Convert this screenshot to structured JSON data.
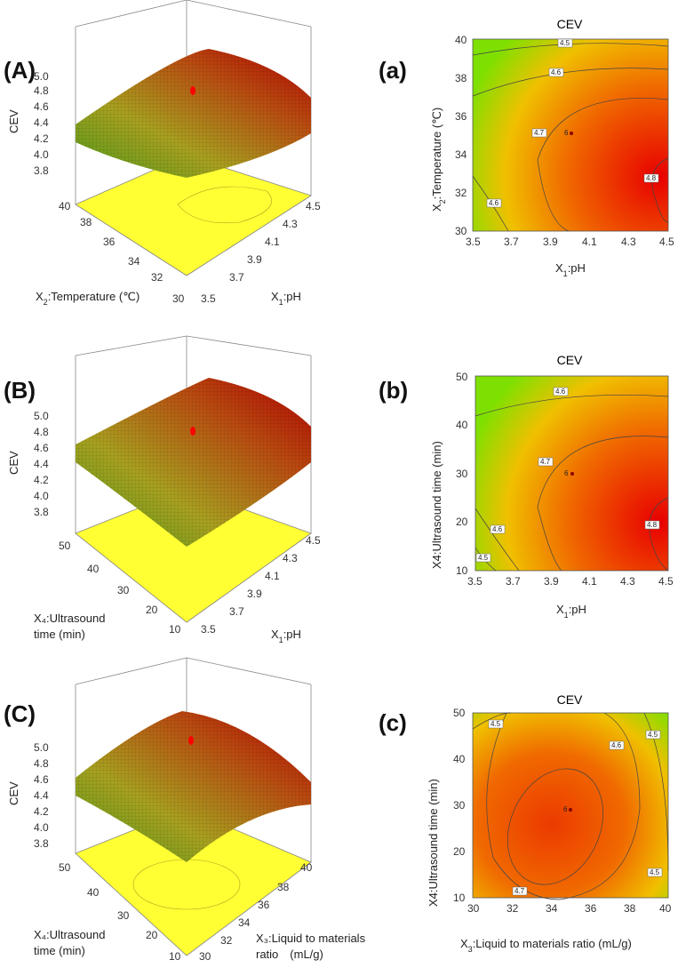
{
  "panels": [
    {
      "surface_label": "(A)",
      "contour_label": "(a)",
      "contour_title": "CEV",
      "z_label": "CEV",
      "x_axis": {
        "label_pre": "X",
        "sub": "1",
        "label_post": ":pH",
        "ticks": [
          "3.5",
          "3.7",
          "3.9",
          "4.1",
          "4.3",
          "4.5"
        ]
      },
      "y_axis": {
        "label_pre": "X",
        "sub": "2",
        "label_post": ":Temperature (℃)",
        "ticks": [
          "30",
          "32",
          "34",
          "36",
          "38",
          "40"
        ]
      },
      "z_ticks": [
        "3.8",
        "4.0",
        "4.2",
        "4.4",
        "4.6",
        "4.8",
        "5.0"
      ],
      "contour_levels": [
        "4.5",
        "4.6",
        "4.7",
        "4.8",
        "4.6"
      ],
      "center_label": "6"
    },
    {
      "surface_label": "(B)",
      "contour_label": "(b)",
      "contour_title": "CEV",
      "z_label": "CEV",
      "x_axis": {
        "label_pre": "X",
        "sub": "1",
        "label_post": ":pH",
        "ticks": [
          "3.5",
          "3.7",
          "3.9",
          "4.1",
          "4.3",
          "4.5"
        ]
      },
      "y_axis": {
        "label_pre": "X4:Ultrasound time (min)",
        "sub": "",
        "label_post": "",
        "ticks": [
          "10",
          "20",
          "30",
          "40",
          "50"
        ]
      },
      "surface_y_label": [
        "X₄:Ultrasound",
        "time (min)"
      ],
      "z_ticks": [
        "3.8",
        "4.0",
        "4.2",
        "4.4",
        "4.6",
        "4.8",
        "5.0"
      ],
      "contour_levels": [
        "4.6",
        "4.7",
        "4.8",
        "4.6",
        "4.5"
      ],
      "center_label": "6"
    },
    {
      "surface_label": "(C)",
      "contour_label": "(c)",
      "contour_title": "CEV",
      "z_label": "CEV",
      "x_axis": {
        "label_pre": "X",
        "sub": "3",
        "label_post": ":Liquid to materials ratio (mL/g)",
        "ticks": [
          "30",
          "32",
          "34",
          "36",
          "38",
          "40"
        ]
      },
      "y_axis": {
        "label_pre": "X4:Ultrasound time (min)",
        "sub": "",
        "label_post": "",
        "ticks": [
          "10",
          "20",
          "30",
          "40",
          "50"
        ]
      },
      "surface_y_label": [
        "X₄:Ultrasound",
        "time (min)"
      ],
      "surface_x_label": [
        "X₃:Liquid to materials",
        "ratio　(mL/g)"
      ],
      "z_ticks": [
        "3.8",
        "4.0",
        "4.2",
        "4.4",
        "4.6",
        "4.8",
        "5.0"
      ],
      "contour_levels": [
        "4.5",
        "4.6",
        "4.5",
        "4.5",
        "4.7"
      ],
      "center_label": "6"
    }
  ],
  "colors": {
    "low": "#7ee000",
    "mid": "#f5a000",
    "high": "#e80000",
    "floor": "#ffff33"
  }
}
